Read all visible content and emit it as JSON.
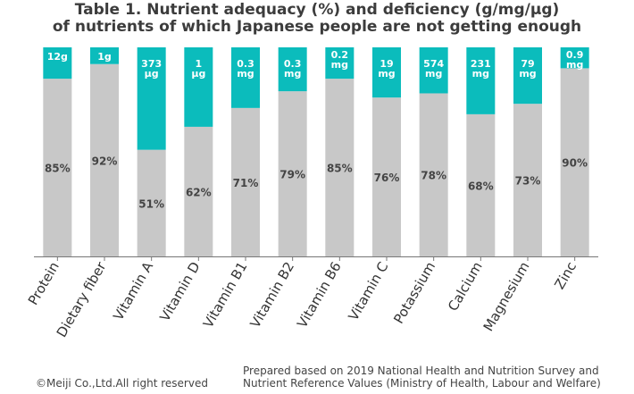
{
  "chart_data": {
    "type": "bar",
    "stacked": true,
    "title_line1": "Table 1. Nutrient adequacy (%) and deficiency (g/mg/µg)",
    "title_line2": "of nutrients of which Japanese people are not getting enough",
    "categories": [
      "Protein",
      "Dietary fiber",
      "Vitamin A",
      "Vitamin D",
      "Vitamin B1",
      "Vitamin B2",
      "Vitamin B6",
      "Vitamin C",
      "Potassium",
      "Calcium",
      "Magnesium",
      "Zinc"
    ],
    "ylim": [
      0,
      100
    ],
    "series": [
      {
        "name": "Adequacy (%)",
        "color": "#c8c8c8",
        "values": [
          85,
          92,
          51,
          62,
          71,
          79,
          85,
          76,
          78,
          68,
          73,
          90
        ],
        "labels": [
          "85%",
          "92%",
          "51%",
          "62%",
          "71%",
          "79%",
          "85%",
          "76%",
          "78%",
          "68%",
          "73%",
          "90%"
        ]
      },
      {
        "name": "Deficiency",
        "color": "#0bbcbc",
        "values": [
          15,
          8,
          49,
          38,
          29,
          21,
          15,
          24,
          22,
          32,
          27,
          10
        ],
        "labels": [
          [
            "12g"
          ],
          [
            "1g"
          ],
          [
            "373",
            "µg"
          ],
          [
            "1",
            "µg"
          ],
          [
            "0.3",
            "mg"
          ],
          [
            "0.3",
            "mg"
          ],
          [
            "0.2",
            "mg"
          ],
          [
            "19",
            "mg"
          ],
          [
            "574",
            "mg"
          ],
          [
            "231",
            "mg"
          ],
          [
            "79",
            "mg"
          ],
          [
            "0.9",
            "mg"
          ]
        ]
      }
    ]
  },
  "footer": {
    "copyright": "©Meiji Co.,Ltd.All right reserved",
    "source_line1": "Prepared based on 2019 National Health and Nutrition Survey and",
    "source_line2": "Nutrient Reference Values (Ministry of Health, Labour and Welfare)"
  }
}
